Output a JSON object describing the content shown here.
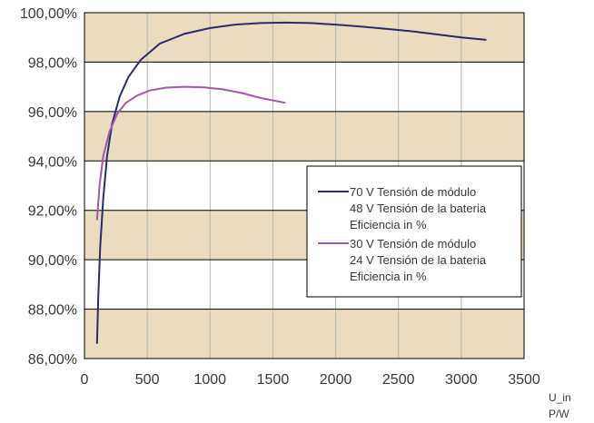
{
  "chart_data": {
    "type": "line",
    "title": "",
    "xlabel_lines": [
      "U_in",
      "P/W"
    ],
    "ylabel": "",
    "xlim": [
      0,
      3500
    ],
    "ylim": [
      86,
      100
    ],
    "x_ticks": [
      0,
      500,
      1000,
      1500,
      2000,
      2500,
      3000,
      3500
    ],
    "x_tick_labels": [
      "0",
      "500",
      "1000",
      "1500",
      "2000",
      "2500",
      "3000",
      "3500"
    ],
    "y_ticks": [
      86,
      88,
      90,
      92,
      94,
      96,
      98,
      100
    ],
    "y_tick_labels": [
      "86,00%",
      "88,00%",
      "90,00%",
      "92,00%",
      "94,00%",
      "96,00%",
      "98,00%",
      "100,00%"
    ],
    "grid": true,
    "band_color": "#e9dcc0",
    "legend_position": "right",
    "series": [
      {
        "name_lines": [
          "70 V Tensión de módulo",
          "48 V Tensión de la bateria",
          "Eficiencia in %"
        ],
        "color": "#2b2a6e",
        "points": [
          [
            100,
            86.6
          ],
          [
            110,
            88.5
          ],
          [
            125,
            90.5
          ],
          [
            150,
            92.5
          ],
          [
            180,
            94.2
          ],
          [
            220,
            95.5
          ],
          [
            280,
            96.6
          ],
          [
            350,
            97.4
          ],
          [
            450,
            98.1
          ],
          [
            600,
            98.75
          ],
          [
            800,
            99.15
          ],
          [
            1000,
            99.38
          ],
          [
            1200,
            99.52
          ],
          [
            1400,
            99.58
          ],
          [
            1600,
            99.6
          ],
          [
            1800,
            99.58
          ],
          [
            2000,
            99.52
          ],
          [
            2200,
            99.44
          ],
          [
            2400,
            99.35
          ],
          [
            2600,
            99.25
          ],
          [
            2800,
            99.13
          ],
          [
            3000,
            99.0
          ],
          [
            3200,
            98.9
          ]
        ]
      },
      {
        "name_lines": [
          "30 V Tensión de módulo",
          "24 V Tensión de la bateria",
          "Eficiencia in %"
        ],
        "color": "#a05aa8",
        "points": [
          [
            100,
            91.6
          ],
          [
            120,
            93.0
          ],
          [
            150,
            94.2
          ],
          [
            200,
            95.2
          ],
          [
            260,
            95.9
          ],
          [
            330,
            96.35
          ],
          [
            420,
            96.65
          ],
          [
            520,
            96.85
          ],
          [
            650,
            96.97
          ],
          [
            800,
            97.0
          ],
          [
            950,
            96.98
          ],
          [
            1100,
            96.9
          ],
          [
            1250,
            96.75
          ],
          [
            1400,
            96.55
          ],
          [
            1600,
            96.35
          ]
        ]
      }
    ]
  }
}
